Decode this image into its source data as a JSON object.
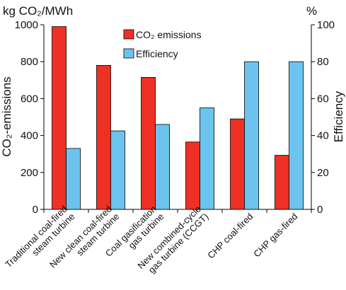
{
  "chart_data": {
    "type": "bar",
    "left_unit": "kg CO₂/MWh",
    "right_unit": "%",
    "ylabel_left": "CO₂-emissions",
    "ylabel_right": "Efficiency",
    "categories": [
      [
        "Traditional coal-fired",
        "steam turbine"
      ],
      [
        "New clean coal-fired",
        "steam turbine"
      ],
      [
        "Coal gasification",
        "gas turbine"
      ],
      [
        "New combined-cycle",
        "gas turbine (CCGT)"
      ],
      [
        "CHP coal-fired"
      ],
      [
        "CHP gas-fired"
      ]
    ],
    "series": [
      {
        "name": "CO₂ emissions",
        "axis": "left",
        "color": "#ee3124",
        "values": [
          990,
          780,
          715,
          365,
          490,
          293
        ]
      },
      {
        "name": "Efficiency",
        "axis": "right",
        "color": "#6cc4ee",
        "values": [
          33,
          42.5,
          46,
          55,
          80,
          80
        ]
      }
    ],
    "ylim_left": [
      0,
      1000
    ],
    "ylim_right": [
      0,
      100
    ],
    "yticks_left": [
      0,
      200,
      400,
      600,
      800,
      1000
    ],
    "yticks_right": [
      0,
      20,
      40,
      60,
      80,
      100
    ],
    "grid": false,
    "legend_position": "top-center"
  }
}
